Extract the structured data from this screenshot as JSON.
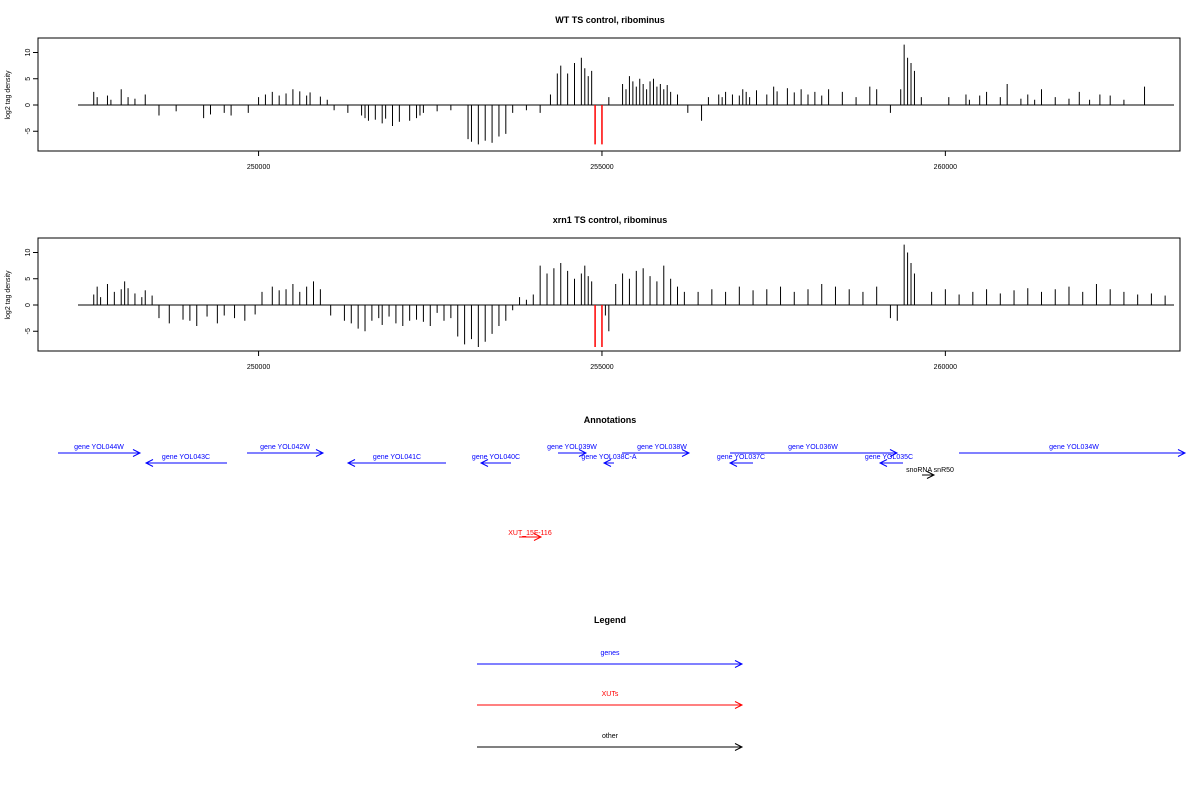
{
  "chart_data": [
    {
      "type": "bar",
      "title": "WT TS control, ribominus",
      "ylabel": "log2 tag density",
      "xlabel": "",
      "xlim": [
        247400,
        263300
      ],
      "ylim": [
        -8,
        12
      ],
      "yticks": [
        10,
        5,
        0,
        -5
      ],
      "xticks": [
        250000,
        255000,
        260000
      ],
      "grid": false,
      "series": [
        {
          "color": "#000000",
          "x": [
            247600,
            247650,
            247800,
            247850,
            248000,
            248100,
            248200,
            248350,
            248550,
            248800,
            249200,
            249300,
            249500,
            249600,
            249850,
            250000,
            250100,
            250200,
            250300,
            250400,
            250500,
            250600,
            250700,
            250750,
            250900,
            251000,
            251100,
            251300,
            251500,
            251550,
            251600,
            251700,
            251800,
            251850,
            251950,
            252050,
            252200,
            252300,
            252350,
            252400,
            252600,
            252800,
            253050,
            253100,
            253200,
            253300,
            253400,
            253500,
            253600,
            253700,
            253900,
            254100,
            254250,
            254350,
            254400,
            254500,
            254600,
            254700,
            254750,
            254800,
            254850,
            255100,
            255300,
            255350,
            255400,
            255450,
            255500,
            255550,
            255600,
            255650,
            255700,
            255750,
            255800,
            255850,
            255900,
            255950,
            256000,
            256100,
            256250,
            256450,
            256550,
            256700,
            256750,
            256800,
            256900,
            257000,
            257050,
            257100,
            257150,
            257250,
            257400,
            257500,
            257550,
            257700,
            257800,
            257900,
            258000,
            258100,
            258200,
            258300,
            258500,
            258700,
            258900,
            259000,
            259200,
            259350,
            259400,
            259450,
            259500,
            259550,
            259650,
            260050,
            260300,
            260350,
            260500,
            260600,
            260800,
            260900,
            261100,
            261200,
            261300,
            261400,
            261600,
            261800,
            261950,
            262100,
            262250,
            262400,
            262600,
            262900
          ],
          "values": [
            2.5,
            1.5,
            1.8,
            1.0,
            3.0,
            1.5,
            1.2,
            2.0,
            -2.0,
            -1.2,
            -2.5,
            -1.8,
            -1.5,
            -2.0,
            -1.5,
            1.5,
            2.0,
            2.5,
            1.8,
            2.2,
            3.0,
            2.6,
            1.8,
            2.4,
            1.6,
            1.0,
            -1.0,
            -1.5,
            -2.0,
            -2.5,
            -3.0,
            -2.8,
            -3.5,
            -2.6,
            -4.0,
            -3.2,
            -3.0,
            -2.5,
            -2.0,
            -1.5,
            -1.2,
            -1.0,
            -6.5,
            -7.0,
            -7.5,
            -6.8,
            -7.2,
            -6.0,
            -5.5,
            -1.5,
            -1.0,
            -1.5,
            2.0,
            6.0,
            7.5,
            6.0,
            8.0,
            9.0,
            7.0,
            5.5,
            6.5,
            1.5,
            4.0,
            3.0,
            5.5,
            4.5,
            3.5,
            5.0,
            4.0,
            3.0,
            4.5,
            5.0,
            3.5,
            4.0,
            3.0,
            3.8,
            2.5,
            2.0,
            -1.5,
            -3.0,
            1.5,
            2.0,
            1.5,
            2.5,
            2.0,
            1.8,
            3.0,
            2.5,
            1.5,
            2.8,
            2.0,
            3.5,
            2.6,
            3.2,
            2.4,
            3.0,
            2.0,
            2.5,
            1.8,
            3.0,
            2.5,
            1.5,
            3.5,
            3.0,
            -1.5,
            3.0,
            11.5,
            9.0,
            8.0,
            6.5,
            1.5,
            1.5,
            2.0,
            1.0,
            1.8,
            2.5,
            1.5,
            4.0,
            1.2,
            2.0,
            1.0,
            3.0,
            1.5,
            1.2,
            2.5,
            1.0,
            2.0,
            1.8,
            1.0,
            3.5
          ]
        },
        {
          "color": "#ff0000",
          "x": [
            254900,
            255000
          ],
          "values": [
            -7.5,
            -7.5
          ]
        }
      ]
    },
    {
      "type": "bar",
      "title": "xrn1 TS control, ribominus",
      "ylabel": "log2 tag density",
      "xlabel": "",
      "xlim": [
        247400,
        263300
      ],
      "ylim": [
        -8,
        12
      ],
      "yticks": [
        10,
        5,
        0,
        -5
      ],
      "xticks": [
        250000,
        255000,
        260000
      ],
      "grid": false,
      "series": [
        {
          "color": "#000000",
          "x": [
            247600,
            247650,
            247700,
            247800,
            247900,
            248000,
            248050,
            248100,
            248200,
            248300,
            248350,
            248450,
            248550,
            248700,
            248900,
            249000,
            249100,
            249250,
            249400,
            249500,
            249650,
            249800,
            249950,
            250050,
            250200,
            250300,
            250400,
            250500,
            250600,
            250700,
            250800,
            250900,
            251050,
            251250,
            251350,
            251450,
            251550,
            251650,
            251750,
            251800,
            251900,
            252000,
            252100,
            252200,
            252300,
            252400,
            252500,
            252600,
            252700,
            252800,
            252900,
            253000,
            253100,
            253200,
            253300,
            253400,
            253500,
            253600,
            253700,
            253800,
            253900,
            254000,
            254100,
            254200,
            254300,
            254400,
            254500,
            254600,
            254700,
            254750,
            254800,
            254850,
            255050,
            255100,
            255200,
            255300,
            255400,
            255500,
            255600,
            255700,
            255800,
            255900,
            256000,
            256100,
            256200,
            256400,
            256600,
            256800,
            257000,
            257200,
            257400,
            257600,
            257800,
            258000,
            258200,
            258400,
            258600,
            258800,
            259000,
            259200,
            259300,
            259400,
            259450,
            259500,
            259550,
            259800,
            260000,
            260200,
            260400,
            260600,
            260800,
            261000,
            261200,
            261400,
            261600,
            261800,
            262000,
            262200,
            262400,
            262600,
            262800,
            263000,
            263200
          ],
          "values": [
            2.0,
            3.5,
            1.5,
            4.0,
            2.5,
            3.0,
            4.5,
            3.2,
            2.2,
            1.5,
            2.8,
            1.8,
            -2.5,
            -3.5,
            -2.8,
            -3.0,
            -4.0,
            -2.2,
            -3.5,
            -2.0,
            -2.5,
            -3.0,
            -1.8,
            2.5,
            3.5,
            2.8,
            3.0,
            4.0,
            2.5,
            3.5,
            4.5,
            3.0,
            -2.0,
            -3.0,
            -3.5,
            -4.5,
            -5.0,
            -3.0,
            -2.5,
            -3.8,
            -2.2,
            -3.5,
            -4.0,
            -3.0,
            -2.8,
            -3.2,
            -4.0,
            -1.5,
            -3.0,
            -2.5,
            -6.0,
            -7.5,
            -6.5,
            -8.0,
            -7.0,
            -5.5,
            -4.0,
            -3.0,
            -1.0,
            1.5,
            1.0,
            2.0,
            7.5,
            6.0,
            7.0,
            8.0,
            6.5,
            5.0,
            6.0,
            7.5,
            5.5,
            4.5,
            -2.0,
            -5.0,
            4.0,
            6.0,
            5.0,
            6.5,
            7.0,
            5.5,
            4.5,
            7.5,
            5.0,
            3.5,
            2.5,
            2.5,
            3.0,
            2.5,
            3.5,
            2.8,
            3.0,
            3.5,
            2.5,
            3.0,
            4.0,
            3.5,
            3.0,
            2.5,
            3.5,
            -2.5,
            -3.0,
            11.5,
            10.0,
            8.0,
            6.0,
            2.5,
            3.0,
            2.0,
            2.5,
            3.0,
            2.2,
            2.8,
            3.2,
            2.5,
            3.0,
            3.5,
            2.5,
            4.0,
            3.0,
            2.5,
            2.0,
            2.2,
            1.8
          ]
        },
        {
          "color": "#ff0000",
          "x": [
            254900,
            255000
          ],
          "values": [
            -8.0,
            -8.0
          ]
        }
      ]
    }
  ],
  "annotations": {
    "title": "Annotations",
    "genes": [
      {
        "label": "gene YOL044W",
        "dir": "right"
      },
      {
        "label": "gene YOL043C",
        "dir": "left"
      },
      {
        "label": "gene YOL042W",
        "dir": "right"
      },
      {
        "label": "gene YOL041C",
        "dir": "left"
      },
      {
        "label": "gene YOL040C",
        "dir": "left"
      },
      {
        "label": "gene YOL039W",
        "dir": "right"
      },
      {
        "label": "gene YOL038C-A",
        "dir": "left"
      },
      {
        "label": "gene YOL038W",
        "dir": "right"
      },
      {
        "label": "gene YOL037C",
        "dir": "left"
      },
      {
        "label": "gene YOL036W",
        "dir": "right"
      },
      {
        "label": "gene YOL035C",
        "dir": "left"
      },
      {
        "label": "gene YOL034W",
        "dir": "right"
      }
    ],
    "other": [
      {
        "label": "snoRNA snR50",
        "dir": "right"
      }
    ],
    "xuts": [
      {
        "label": "XUT_15F-116",
        "dir": "right"
      }
    ]
  },
  "legend": {
    "title": "Legend",
    "items": [
      {
        "label": "genes",
        "color": "#0000ff"
      },
      {
        "label": "XUTs",
        "color": "#ff0000"
      },
      {
        "label": "other",
        "color": "#000000"
      }
    ]
  }
}
